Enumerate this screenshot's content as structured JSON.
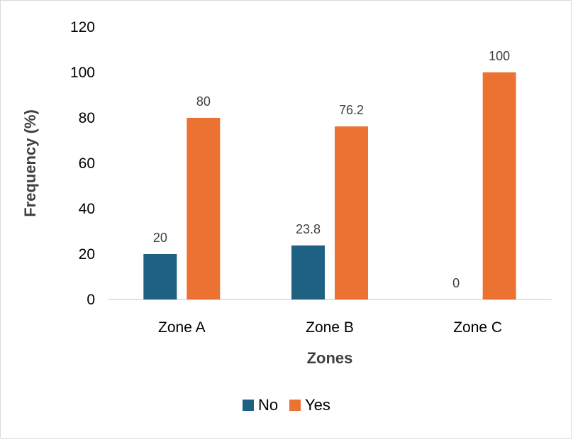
{
  "chart_data": {
    "type": "bar",
    "title": "",
    "xlabel": "Zones",
    "ylabel": "Frequency (%)",
    "categories": [
      "Zone A",
      "Zone B",
      "Zone C"
    ],
    "series": [
      {
        "name": "No",
        "values": [
          20,
          23.8,
          0
        ],
        "labels": [
          "20",
          "23.8",
          "0"
        ],
        "color": "#1F6182"
      },
      {
        "name": "Yes",
        "values": [
          80,
          76.2,
          100
        ],
        "labels": [
          "80",
          "76.2",
          "100"
        ],
        "color": "#EB7231"
      }
    ],
    "ylim": [
      0,
      120
    ],
    "yticks": [
      0,
      20,
      40,
      60,
      80,
      100,
      120
    ],
    "ytick_labels": [
      "0",
      "20",
      "40",
      "60",
      "80",
      "100",
      "120"
    ],
    "grid": false,
    "legend_position": "bottom"
  }
}
